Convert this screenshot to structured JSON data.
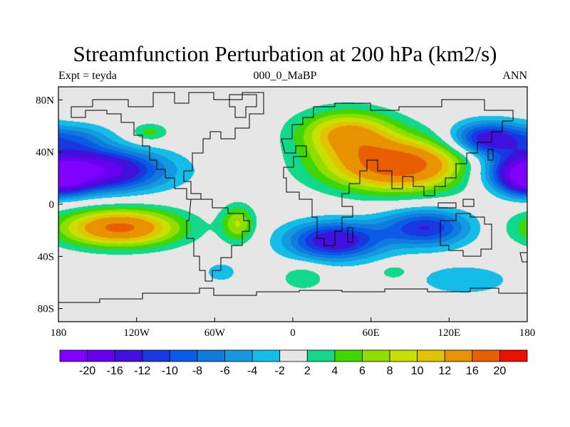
{
  "title": "Streamfunction Perturbation at 200 hPa (km2/s)",
  "left_label": "Expt = teyda",
  "center_label": "000_0_MaBP",
  "right_label": "ANN",
  "map": {
    "projection": "cylindrical-equidistant",
    "lon_range": [
      -180,
      180
    ],
    "lat_range": [
      -90,
      90
    ],
    "x_ticks": [
      {
        "lon": -180,
        "label": "180"
      },
      {
        "lon": -120,
        "label": "120W"
      },
      {
        "lon": -60,
        "label": "60W"
      },
      {
        "lon": 0,
        "label": "0"
      },
      {
        "lon": 60,
        "label": "60E"
      },
      {
        "lon": 120,
        "label": "120E"
      },
      {
        "lon": 180,
        "label": "180"
      }
    ],
    "y_ticks": [
      {
        "lat": 80,
        "label": "80N"
      },
      {
        "lat": 40,
        "label": "40N"
      },
      {
        "lat": 0,
        "label": "0"
      },
      {
        "lat": -40,
        "label": "40S"
      },
      {
        "lat": -80,
        "label": "80S"
      }
    ],
    "missing_color": "#e6e6e6"
  },
  "colorbar": {
    "labels": [
      "-20",
      "-16",
      "-12",
      "-10",
      "-8",
      "-6",
      "-4",
      "-2",
      "2",
      "4",
      "6",
      "8",
      "10",
      "12",
      "16",
      "20"
    ],
    "colors": [
      "#8000ff",
      "#6600ee",
      "#4010dd",
      "#1838e0",
      "#0a5ce6",
      "#0f7bdc",
      "#1299e0",
      "#14bde6",
      "#e6e6e6",
      "#11d88a",
      "#40d600",
      "#90dd00",
      "#c8e000",
      "#e0c400",
      "#e89200",
      "#e85e00",
      "#ec1000"
    ]
  },
  "features": [
    {
      "name": "pacific-north-low",
      "lon": -158,
      "lat": 26,
      "value": -21,
      "slon": 38,
      "slat": 11
    },
    {
      "name": "west-pacific-north-low",
      "lon": 150,
      "lat": 50,
      "value": -15,
      "slon": 20,
      "slat": 9
    },
    {
      "name": "dateline-north-low",
      "lon": 180,
      "lat": 20,
      "value": -14,
      "slon": 14,
      "slat": 9
    },
    {
      "name": "pacific-south-high",
      "lon": -133,
      "lat": -18,
      "value": 17,
      "slon": 32,
      "slat": 10
    },
    {
      "name": "eurasia-high",
      "lon": 82,
      "lat": 30,
      "value": 19,
      "slon": 40,
      "slat": 14
    },
    {
      "name": "europe-high",
      "lon": 42,
      "lat": 55,
      "value": 12,
      "slon": 26,
      "slat": 12
    },
    {
      "name": "africa-south-low",
      "lon": 32,
      "lat": -28,
      "value": -15,
      "slon": 25,
      "slat": 10
    },
    {
      "name": "indian-ocean-south-low",
      "lon": 102,
      "lat": -18,
      "value": -12,
      "slon": 24,
      "slat": 10
    },
    {
      "name": "south-america-high",
      "lon": -42,
      "lat": -15,
      "value": 8,
      "slon": 9,
      "slat": 10
    },
    {
      "name": "north-atlantic-high",
      "lon": -110,
      "lat": 55,
      "value": 5,
      "slon": 10,
      "slat": 5
    },
    {
      "name": "south-atlantic-high",
      "lon": 8,
      "lat": -56,
      "value": 4,
      "slon": 12,
      "slat": 7
    },
    {
      "name": "south-indian-high",
      "lon": 78,
      "lat": -52,
      "value": 4,
      "slon": 8,
      "slat": 4
    },
    {
      "name": "southern-ocean-low",
      "lon": -55,
      "lat": -52,
      "value": -4,
      "slon": 8,
      "slat": 5
    },
    {
      "name": "east-pacific-low",
      "lon": 132,
      "lat": -58,
      "value": -4,
      "slon": 25,
      "slat": 8
    },
    {
      "name": "atlantic-low",
      "lon": -165,
      "lat": 50,
      "value": -6,
      "slon": 18,
      "slat": 8
    }
  ]
}
